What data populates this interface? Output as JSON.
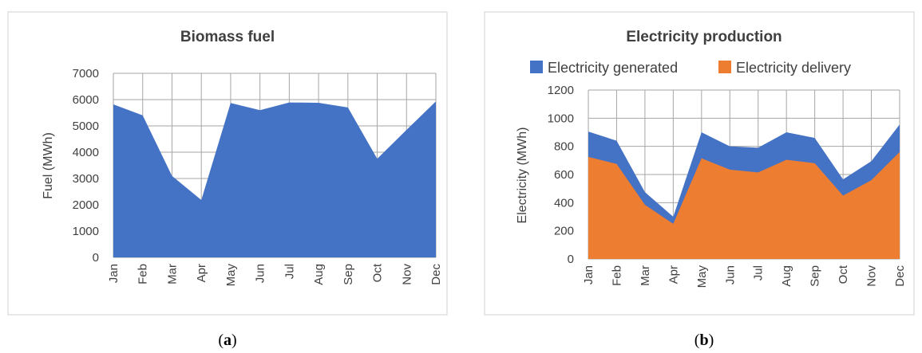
{
  "chart_data": [
    {
      "type": "area",
      "title": "Biomass fuel",
      "xlabel": "",
      "ylabel": "Fuel (MWh)",
      "ylim": [
        0,
        7000
      ],
      "yticks": [
        0,
        1000,
        2000,
        3000,
        4000,
        5000,
        6000,
        7000
      ],
      "grid": true,
      "categories": [
        "Jan",
        "Feb",
        "Mar",
        "Apr",
        "May",
        "Jun",
        "Jul",
        "Aug",
        "Sep",
        "Oct",
        "Nov",
        "Dec"
      ],
      "series": [
        {
          "name": "",
          "color": "#4472C4",
          "values": [
            5820,
            5400,
            3100,
            2180,
            5870,
            5600,
            5890,
            5880,
            5700,
            3750,
            4850,
            5930
          ]
        }
      ],
      "caption": {
        "open": "(",
        "letter": "a",
        "close": ")"
      }
    },
    {
      "type": "area",
      "title": "Electricity production",
      "xlabel": "",
      "ylabel": "Electricity (MWh)",
      "ylim": [
        0,
        1200
      ],
      "yticks": [
        0,
        200,
        400,
        600,
        800,
        1000,
        1200
      ],
      "grid": true,
      "legend_position": "top",
      "categories": [
        "Jan",
        "Feb",
        "Mar",
        "Apr",
        "May",
        "Jun",
        "Jul",
        "Aug",
        "Sep",
        "Oct",
        "Nov",
        "Dec"
      ],
      "series": [
        {
          "name": "Electricity generated",
          "color": "#4472C4",
          "values": [
            905,
            840,
            475,
            300,
            900,
            800,
            790,
            900,
            860,
            565,
            695,
            955
          ]
        },
        {
          "name": "Electricity delivery",
          "color": "#ED7D31",
          "values": [
            725,
            675,
            385,
            250,
            715,
            635,
            615,
            705,
            680,
            450,
            560,
            760
          ]
        }
      ],
      "caption": {
        "open": "(",
        "letter": "b",
        "close": ")"
      }
    }
  ]
}
